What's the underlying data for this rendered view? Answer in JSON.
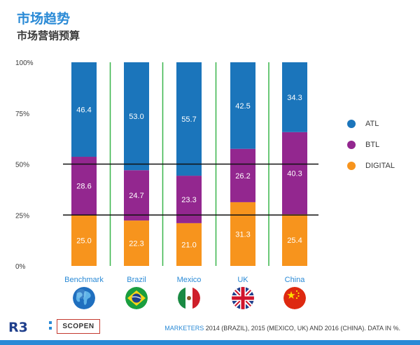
{
  "header": {
    "title": "市场趋势",
    "subtitle": "市场营销预算"
  },
  "chart_data": {
    "type": "bar",
    "stacked": true,
    "categories": [
      "Benchmark",
      "Brazil",
      "Mexico",
      "UK",
      "China"
    ],
    "series": [
      {
        "name": "DIGITAL",
        "color": "#f7941d",
        "values": [
          25.0,
          22.3,
          21.0,
          31.3,
          25.4
        ]
      },
      {
        "name": "BTL",
        "color": "#93278f",
        "values": [
          28.6,
          24.7,
          23.3,
          26.2,
          40.3
        ]
      },
      {
        "name": "ATL",
        "color": "#1b75bb",
        "values": [
          46.4,
          53.0,
          55.7,
          42.5,
          34.3
        ]
      }
    ],
    "ylim": [
      0,
      100
    ],
    "y_ticks": [
      "0%",
      "25%",
      "50%",
      "75%",
      "100%"
    ],
    "reference_lines": [
      25,
      50
    ],
    "legend_position": "right",
    "grid": false,
    "divider_color": "#39b54a"
  },
  "legend": [
    {
      "label": "ATL",
      "color": "#1b75bb"
    },
    {
      "label": "BTL",
      "color": "#93278f"
    },
    {
      "label": "DIGITAL",
      "color": "#f7941d"
    }
  ],
  "flags": [
    {
      "name": "world-globe-icon"
    },
    {
      "name": "brazil-flag-icon"
    },
    {
      "name": "mexico-flag-icon"
    },
    {
      "name": "uk-flag-icon"
    },
    {
      "name": "china-flag-icon"
    }
  ],
  "footer": {
    "logo_text": "R3",
    "partner": "SCOPEN",
    "note_highlight": "MARKETERS",
    "note_rest": " 2014 (BRAZIL), 2015 (MEXICO, UK) AND 2016 (CHINA). DATA IN %."
  },
  "colors": {
    "accent": "#2a8ad6",
    "atl": "#1b75bb",
    "btl": "#93278f",
    "digital": "#f7941d"
  }
}
